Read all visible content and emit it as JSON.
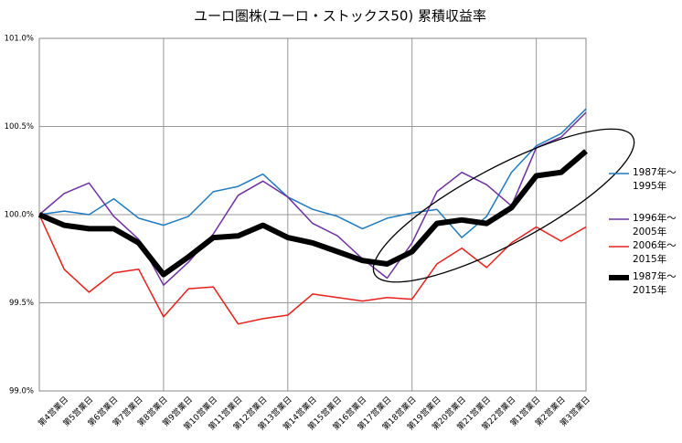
{
  "chart_data": {
    "type": "line",
    "title": "ユーロ圏株(ユーロ・ストックス50) 累積収益率",
    "categories": [
      null,
      "第4営業日",
      "第5営業日",
      "第6営業日",
      "第7営業日",
      "第8営業日",
      "第9営業日",
      "第10営業日",
      "第11営業日",
      "第12営業日",
      "第13営業日",
      "第14営業日",
      "第15営業日",
      "第16営業日",
      "第17営業日",
      "第18営業日",
      "第19営業日",
      "第20営業日",
      "第21営業日",
      "第22営業日",
      "第1営業日",
      "第2営業日",
      "第3営業日"
    ],
    "series": [
      {
        "name": "1987年～\n1995年",
        "color": "#1f7bc0",
        "width": 1.5,
        "values": [
          100,
          100.02,
          100.0,
          100.09,
          99.98,
          99.94,
          99.99,
          100.13,
          100.16,
          100.23,
          100.1,
          100.03,
          99.99,
          99.92,
          99.98,
          100.01,
          100.03,
          99.87,
          99.99,
          100.24,
          100.39,
          100.46,
          100.6
        ]
      },
      {
        "name": "1996年～\n2005年",
        "color": "#7030a0",
        "width": 1.5,
        "values": [
          100,
          100.12,
          100.18,
          99.99,
          99.86,
          99.6,
          99.73,
          99.89,
          100.11,
          100.19,
          100.1,
          99.95,
          99.88,
          99.75,
          99.64,
          99.84,
          100.13,
          100.24,
          100.17,
          100.05,
          100.38,
          100.44,
          100.58
        ]
      },
      {
        "name": "2006年～\n2015年",
        "color": "#e8201a",
        "width": 1.5,
        "values": [
          100,
          99.69,
          99.56,
          99.67,
          99.69,
          99.42,
          99.58,
          99.59,
          99.38,
          99.41,
          99.43,
          99.55,
          99.53,
          99.51,
          99.53,
          99.52,
          99.72,
          99.81,
          99.7,
          99.84,
          99.93,
          99.85,
          99.93
        ]
      },
      {
        "name": "1987年～\n2015年",
        "color": "#000000",
        "width": 6,
        "values": [
          100,
          99.94,
          99.92,
          99.92,
          99.84,
          99.66,
          99.76,
          99.87,
          99.88,
          99.94,
          99.87,
          99.84,
          99.79,
          99.74,
          99.72,
          99.79,
          99.95,
          99.97,
          99.95,
          100.04,
          100.22,
          100.24,
          100.36
        ]
      }
    ],
    "ylim": [
      99.0,
      101.0
    ],
    "yticks": [
      {
        "value": 99.0,
        "label": "99.0%"
      },
      {
        "value": 99.5,
        "label": "99.5%"
      },
      {
        "value": 100.0,
        "label": "100.0%"
      },
      {
        "value": 100.5,
        "label": "100.5%"
      },
      {
        "value": 101.0,
        "label": "101.0%"
      }
    ],
    "grid": true
  }
}
